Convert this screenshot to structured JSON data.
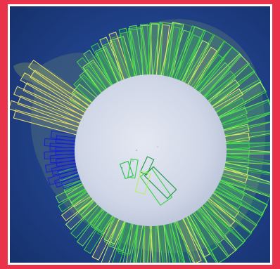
{
  "colors": {
    "frame_background": "#e8334a",
    "frame_border": "#ffffff",
    "ocean": "#1f3f86",
    "ice_sheet": "#cfd6e6",
    "footprint_green": "#3fd24a",
    "footprint_lime": "#b5f06a",
    "footprint_yellow": "#e8e26a",
    "footprint_blue": "#1a1fd0"
  },
  "icons": {
    "map": "polar-map-icon"
  }
}
